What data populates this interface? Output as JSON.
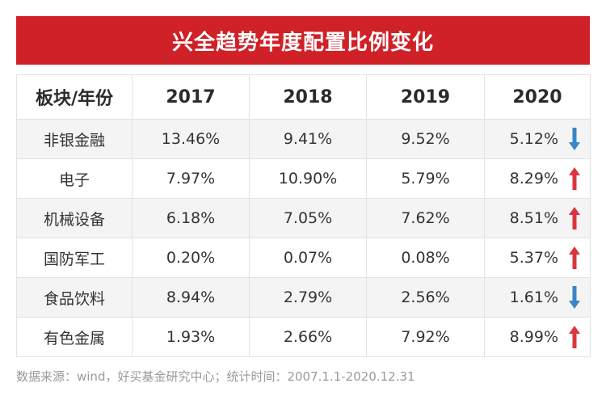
{
  "title": "兴全趋势年度配置比例变化",
  "table": {
    "headers": [
      "板块/年份",
      "2017",
      "2018",
      "2019",
      "2020"
    ],
    "rows": [
      {
        "sector": "非银金融",
        "v2017": "13.46%",
        "v2018": "9.41%",
        "v2019": "9.52%",
        "v2020": "5.12%",
        "trend": "down"
      },
      {
        "sector": "电子",
        "v2017": "7.97%",
        "v2018": "10.90%",
        "v2019": "5.79%",
        "v2020": "8.29%",
        "trend": "up"
      },
      {
        "sector": "机械设备",
        "v2017": "6.18%",
        "v2018": "7.05%",
        "v2019": "7.62%",
        "v2020": "8.51%",
        "trend": "up"
      },
      {
        "sector": "国防军工",
        "v2017": "0.20%",
        "v2018": "0.07%",
        "v2019": "0.08%",
        "v2020": "5.37%",
        "trend": "up"
      },
      {
        "sector": "食品饮料",
        "v2017": "8.94%",
        "v2018": "2.79%",
        "v2019": "2.56%",
        "v2020": "1.61%",
        "trend": "down"
      },
      {
        "sector": "有色金属",
        "v2017": "1.93%",
        "v2018": "2.66%",
        "v2019": "7.92%",
        "v2020": "8.99%",
        "trend": "up"
      }
    ]
  },
  "source": "数据来源：wind，好买基金研究中心；统计时间：2007.1.1-2020.12.31",
  "colors": {
    "banner": "#cf2127",
    "up_arrow": "#d9363e",
    "down_arrow": "#3a86c8"
  }
}
